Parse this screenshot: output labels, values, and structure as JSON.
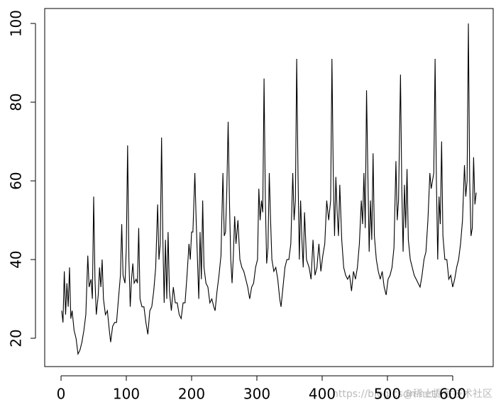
{
  "chart_data": {
    "type": "line",
    "color": "#000000",
    "watermark": [
      "https://blog.csdn.net/",
      "@稀土掘金技术社区"
    ],
    "xlim": [
      -25,
      662
    ],
    "ylim": [
      12.8,
      103.8
    ],
    "xticks": [
      0,
      100,
      200,
      300,
      400,
      500,
      600
    ],
    "yticks": [
      20,
      40,
      60,
      80,
      100
    ],
    "x": [
      1,
      3,
      5,
      7,
      9,
      11,
      13,
      15,
      17,
      20,
      23,
      26,
      29,
      32,
      35,
      38,
      41,
      43,
      46,
      48,
      50,
      52,
      54,
      57,
      59,
      61,
      63,
      65,
      68,
      71,
      74,
      76,
      79,
      82,
      85,
      88,
      91,
      93,
      95,
      98,
      100,
      102,
      104,
      106,
      108,
      110,
      112,
      115,
      117,
      119,
      121,
      124,
      127,
      130,
      133,
      136,
      139,
      142,
      145,
      148,
      150,
      152,
      154,
      156,
      158,
      160,
      162,
      164,
      166,
      169,
      172,
      175,
      178,
      181,
      184,
      187,
      190,
      193,
      196,
      198,
      200,
      202,
      205,
      207,
      209,
      211,
      213,
      215,
      217,
      219,
      222,
      225,
      228,
      231,
      234,
      236,
      239,
      242,
      245,
      248,
      250,
      252,
      254,
      256,
      258,
      260,
      262,
      264,
      266,
      268,
      271,
      274,
      277,
      280,
      283,
      286,
      289,
      292,
      295,
      298,
      301,
      303,
      305,
      307,
      309,
      311,
      313,
      315,
      317,
      319,
      321,
      323,
      326,
      329,
      332,
      335,
      337,
      340,
      343,
      346,
      349,
      352,
      355,
      357,
      359,
      361,
      363,
      365,
      367,
      369,
      371,
      373,
      376,
      380,
      383,
      386,
      389,
      392,
      395,
      398,
      401,
      404,
      407,
      410,
      413,
      415,
      417,
      419,
      421,
      423,
      425,
      427,
      430,
      433,
      436,
      439,
      442,
      445,
      448,
      451,
      454,
      457,
      460,
      462,
      464,
      466,
      468,
      470,
      472,
      474,
      476,
      478,
      480,
      483,
      486,
      489,
      492,
      495,
      498,
      501,
      504,
      507,
      510,
      513,
      515,
      517,
      520,
      522,
      524,
      526,
      528,
      530,
      532,
      535,
      538,
      541,
      544,
      547,
      550,
      553,
      556,
      559,
      562,
      565,
      567,
      569,
      571,
      573,
      575,
      577,
      579,
      581,
      583,
      585,
      588,
      591,
      594,
      597,
      600,
      603,
      606,
      609,
      612,
      615,
      618,
      620,
      622,
      624,
      626,
      628,
      630,
      632,
      634,
      636
    ],
    "values": [
      27,
      24,
      37,
      26,
      34,
      28,
      38,
      25,
      27,
      22,
      20,
      16,
      17,
      19,
      22,
      26,
      41,
      33,
      35,
      30,
      56,
      35,
      26,
      31,
      38,
      33,
      40,
      30,
      26,
      27,
      22,
      19,
      23,
      24,
      24,
      30,
      36,
      49,
      36,
      34,
      43,
      69,
      40,
      28,
      35,
      39,
      34,
      35,
      34,
      48,
      30,
      28,
      28,
      24,
      21,
      27,
      28,
      32,
      38,
      54,
      40,
      44,
      71,
      45,
      29,
      45,
      30,
      47,
      32,
      27,
      33,
      29,
      29,
      26,
      25,
      29,
      29,
      36,
      44,
      40,
      47,
      47,
      62,
      50,
      40,
      30,
      47,
      35,
      55,
      38,
      34,
      33,
      29,
      30,
      28,
      27,
      32,
      36,
      41,
      62,
      46,
      47,
      58,
      75,
      55,
      40,
      34,
      41,
      51,
      44,
      50,
      40,
      38,
      37,
      35,
      33,
      30,
      33,
      34,
      38,
      40,
      58,
      50,
      55,
      52,
      86,
      55,
      39,
      43,
      62,
      50,
      40,
      37,
      38,
      35,
      30,
      28,
      33,
      38,
      40,
      40,
      44,
      62,
      50,
      55,
      91,
      62,
      40,
      55,
      45,
      38,
      52,
      40,
      38,
      35,
      45,
      36,
      38,
      44,
      37,
      41,
      44,
      55,
      50,
      55,
      91,
      62,
      46,
      61,
      52,
      46,
      59,
      45,
      38,
      36,
      35,
      36,
      32,
      37,
      35,
      38,
      44,
      55,
      49,
      62,
      48,
      83,
      62,
      42,
      55,
      45,
      67,
      46,
      40,
      37,
      35,
      37,
      33,
      31,
      35,
      36,
      38,
      43,
      65,
      50,
      55,
      87,
      58,
      42,
      59,
      48,
      63,
      45,
      40,
      38,
      36,
      35,
      34,
      33,
      36,
      40,
      42,
      50,
      62,
      58,
      60,
      62,
      91,
      60,
      40,
      56,
      49,
      70,
      46,
      40,
      40,
      35,
      36,
      33,
      35,
      38,
      40,
      44,
      50,
      64,
      56,
      60,
      100,
      60,
      46,
      48,
      66,
      54,
      57
    ]
  }
}
